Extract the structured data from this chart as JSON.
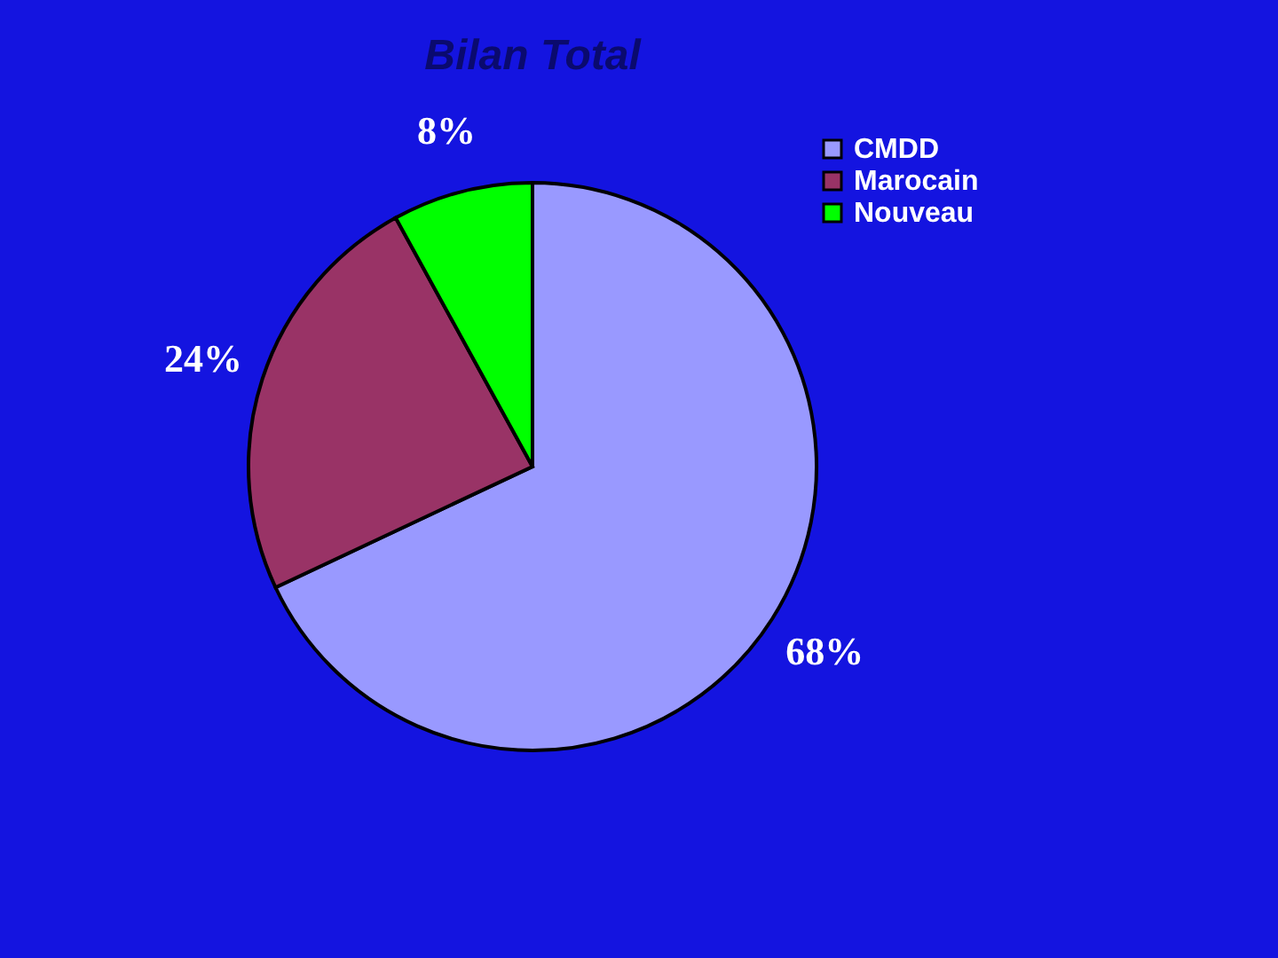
{
  "chart_data": {
    "type": "pie",
    "title": "Bilan Total",
    "categories": [
      "CMDD",
      "Marocain",
      "Nouveau"
    ],
    "values": [
      68,
      24,
      8
    ],
    "colors": [
      "#9999ff",
      "#993366",
      "#00ff00"
    ],
    "value_labels": [
      "68%",
      "24%",
      "8%"
    ],
    "legend": "top right"
  }
}
